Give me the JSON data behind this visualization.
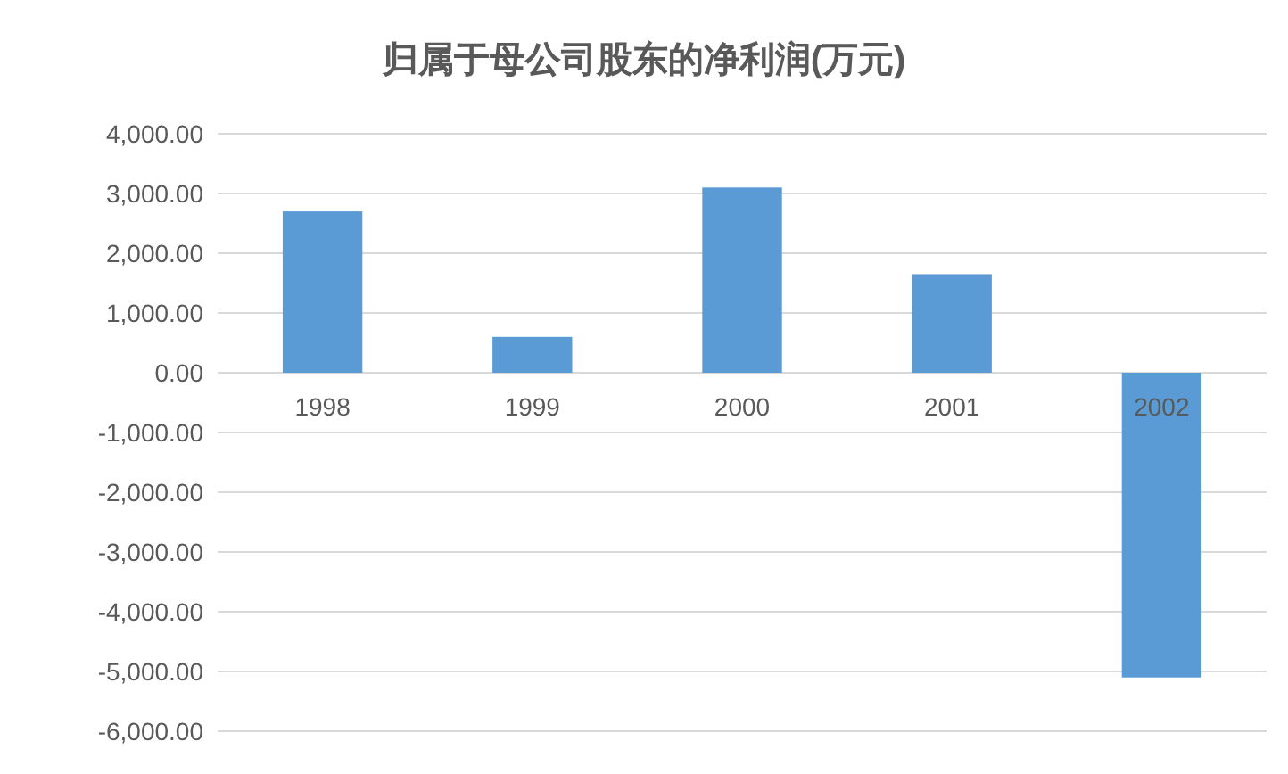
{
  "chart_data": {
    "type": "bar",
    "title": "归属于母公司股东的净利润(万元)",
    "categories": [
      "1998",
      "1999",
      "2000",
      "2001",
      "2002"
    ],
    "values": [
      2700,
      600,
      3100,
      1650,
      -5100
    ],
    "color": "#5b9bd5",
    "ylim": [
      -6000,
      4000
    ],
    "yticks": [
      {
        "value": -6000,
        "label": "-6,000.00"
      },
      {
        "value": -5000,
        "label": "-5,000.00"
      },
      {
        "value": -4000,
        "label": "-4,000.00"
      },
      {
        "value": -3000,
        "label": "-3,000.00"
      },
      {
        "value": -2000,
        "label": "-2,000.00"
      },
      {
        "value": -1000,
        "label": "-1,000.00"
      },
      {
        "value": 0,
        "label": "0.00"
      },
      {
        "value": 1000,
        "label": "1,000.00"
      },
      {
        "value": 2000,
        "label": "2,000.00"
      },
      {
        "value": 3000,
        "label": "3,000.00"
      },
      {
        "value": 4000,
        "label": "4,000.00"
      }
    ],
    "grid": true
  }
}
